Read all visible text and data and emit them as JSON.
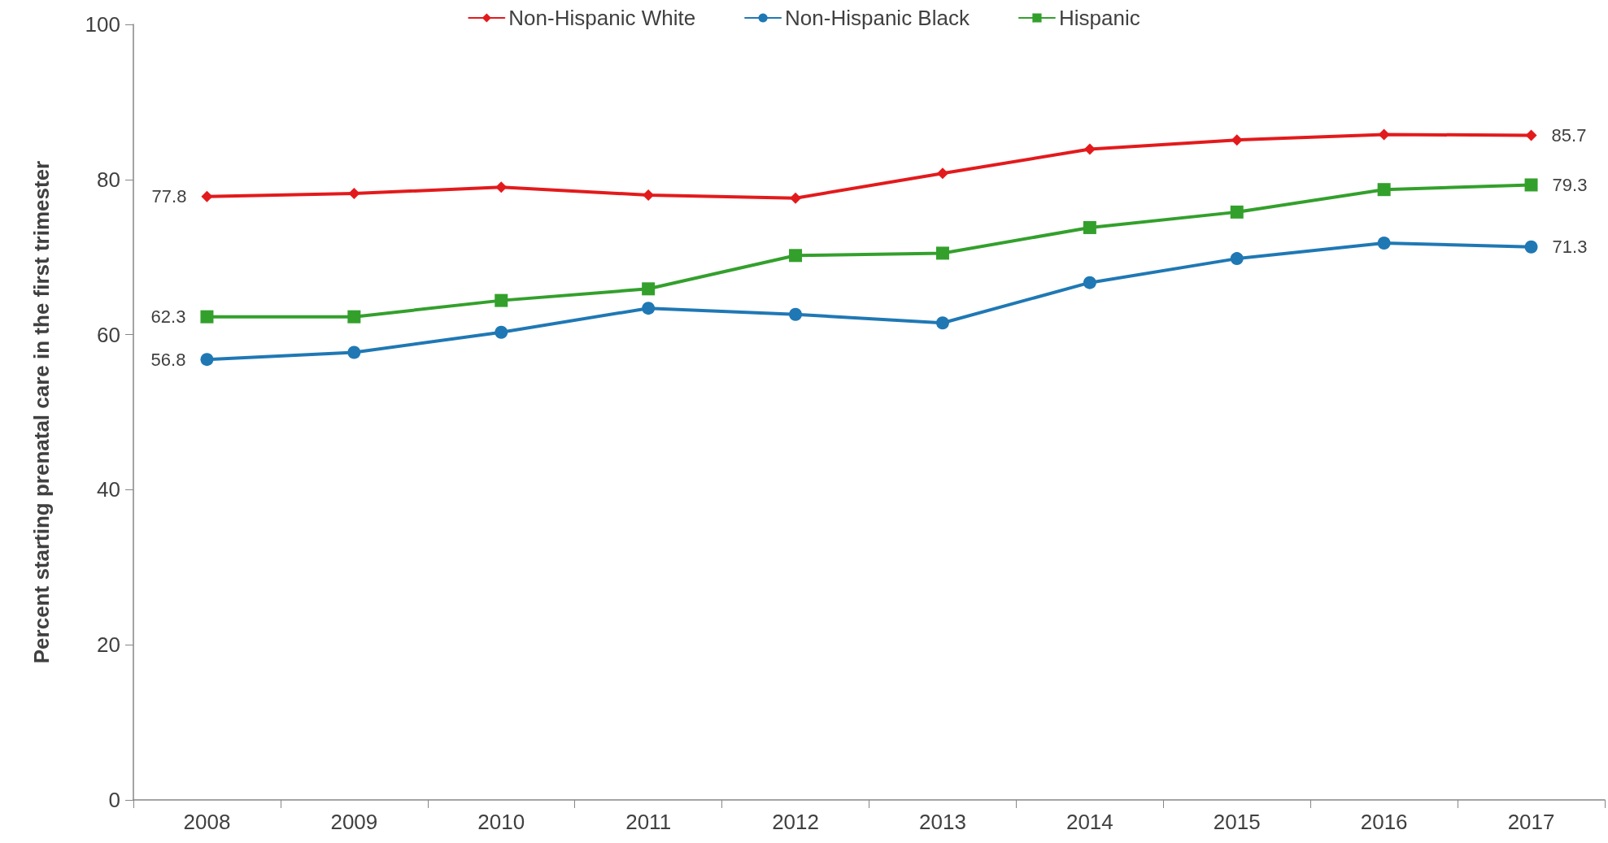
{
  "chart_data": {
    "type": "line",
    "ylabel": "Percent starting prenatal care in the first trimester",
    "categories": [
      "2008",
      "2009",
      "2010",
      "2011",
      "2012",
      "2013",
      "2014",
      "2015",
      "2016",
      "2017"
    ],
    "series": [
      {
        "name": "Non-Hispanic White",
        "color": "#e31a1c",
        "marker": "diamond",
        "values": [
          77.8,
          78.2,
          79.0,
          78.0,
          77.6,
          80.8,
          83.9,
          85.1,
          85.8,
          85.7
        ],
        "value_labels": [
          "77.8",
          null,
          null,
          null,
          null,
          null,
          null,
          null,
          null,
          "85.7"
        ]
      },
      {
        "name": "Non-Hispanic Black",
        "color": "#1f78b4",
        "marker": "circle",
        "values": [
          56.8,
          57.7,
          60.3,
          63.4,
          62.6,
          61.5,
          66.7,
          69.8,
          71.8,
          71.3
        ],
        "value_labels": [
          "56.8",
          null,
          null,
          null,
          null,
          null,
          null,
          null,
          null,
          "71.3"
        ]
      },
      {
        "name": "Hispanic",
        "color": "#33a02c",
        "marker": "square",
        "values": [
          62.3,
          62.3,
          64.4,
          65.9,
          70.2,
          70.5,
          73.8,
          75.8,
          78.7,
          79.3
        ],
        "value_labels": [
          "62.3",
          null,
          null,
          null,
          null,
          null,
          null,
          null,
          null,
          "79.3"
        ]
      }
    ],
    "ylim": [
      0,
      100
    ],
    "yticks": [
      0,
      20,
      40,
      60,
      80,
      100
    ],
    "grid": false,
    "legend": "top",
    "line_style": "solid"
  }
}
